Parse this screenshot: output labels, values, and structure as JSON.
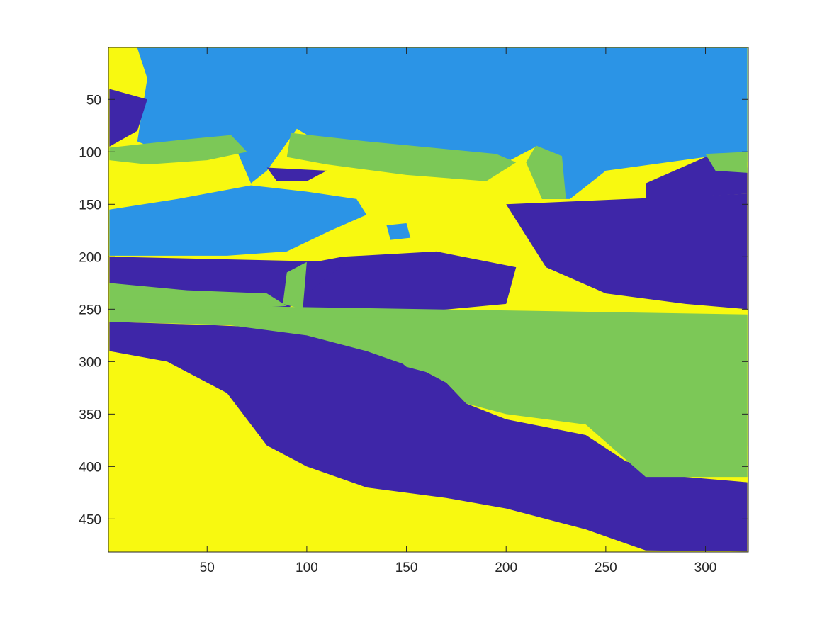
{
  "chart_data": {
    "type": "heatmap",
    "title": "",
    "xlabel": "",
    "ylabel": "",
    "grid": false,
    "legend": "none",
    "colormap": "parula",
    "num_classes": 4,
    "class_colors": [
      "#3E26A8",
      "#2B94E6",
      "#7CC857",
      "#F8F910"
    ],
    "x_ticks": [
      50,
      100,
      150,
      200,
      250,
      300
    ],
    "y_ticks": [
      50,
      100,
      150,
      200,
      250,
      300,
      350,
      400,
      450
    ],
    "xlim": [
      0.5,
      321.5
    ],
    "ylim": [
      0.5,
      481.5
    ],
    "y_direction": "reverse",
    "image_size": {
      "cols": 321,
      "rows": 481
    },
    "regions": [
      {
        "class": 1,
        "polygon": [
          [
            1,
            1
          ],
          [
            321,
            1
          ],
          [
            321,
            110
          ],
          [
            300,
            105
          ],
          [
            250,
            118
          ],
          [
            232,
            145
          ],
          [
            218,
            145
          ],
          [
            215,
            95
          ],
          [
            200,
            110
          ],
          [
            110,
            95
          ],
          [
            95,
            78
          ],
          [
            80,
            118
          ],
          [
            72,
            130
          ],
          [
            62,
            86
          ],
          [
            25,
            98
          ],
          [
            15,
            90
          ],
          [
            20,
            30
          ],
          [
            15,
            1
          ]
        ]
      },
      {
        "class": 1,
        "polygon": [
          [
            1,
            155
          ],
          [
            35,
            145
          ],
          [
            72,
            132
          ],
          [
            100,
            138
          ],
          [
            125,
            145
          ],
          [
            130,
            160
          ],
          [
            112,
            175
          ],
          [
            90,
            195
          ],
          [
            60,
            199
          ],
          [
            1,
            199
          ]
        ]
      },
      {
        "class": 1,
        "polygon": [
          [
            140,
            170
          ],
          [
            150,
            168
          ],
          [
            152,
            182
          ],
          [
            142,
            184
          ]
        ]
      },
      {
        "class": 0,
        "polygon": [
          [
            90,
            210
          ],
          [
            118,
            200
          ],
          [
            165,
            195
          ],
          [
            205,
            210
          ],
          [
            200,
            245
          ],
          [
            160,
            252
          ],
          [
            115,
            255
          ],
          [
            95,
            252
          ]
        ]
      },
      {
        "class": 0,
        "polygon": [
          [
            200,
            150
          ],
          [
            321,
            140
          ],
          [
            321,
            250
          ],
          [
            290,
            245
          ],
          [
            250,
            235
          ],
          [
            220,
            210
          ],
          [
            210,
            180
          ]
        ]
      },
      {
        "class": 0,
        "polygon": [
          [
            300,
            105
          ],
          [
            321,
            115
          ],
          [
            321,
            140
          ],
          [
            270,
            145
          ],
          [
            270,
            130
          ]
        ]
      },
      {
        "class": 0,
        "polygon": [
          [
            1,
            200
          ],
          [
            120,
            205
          ],
          [
            90,
            250
          ],
          [
            1,
            245
          ]
        ]
      },
      {
        "class": 0,
        "polygon": [
          [
            1,
            262
          ],
          [
            50,
            265
          ],
          [
            110,
            270
          ],
          [
            140,
            290
          ],
          [
            170,
            320
          ],
          [
            180,
            340
          ],
          [
            200,
            355
          ],
          [
            240,
            370
          ],
          [
            260,
            395
          ],
          [
            290,
            410
          ],
          [
            321,
            415
          ],
          [
            321,
            481
          ],
          [
            270,
            480
          ],
          [
            240,
            460
          ],
          [
            200,
            440
          ],
          [
            170,
            430
          ],
          [
            130,
            420
          ],
          [
            100,
            400
          ],
          [
            80,
            380
          ],
          [
            60,
            330
          ],
          [
            30,
            300
          ],
          [
            1,
            290
          ]
        ]
      },
      {
        "class": 0,
        "polygon": [
          [
            1,
            40
          ],
          [
            20,
            50
          ],
          [
            15,
            80
          ],
          [
            1,
            95
          ]
        ]
      },
      {
        "class": 0,
        "polygon": [
          [
            80,
            115
          ],
          [
            110,
            118
          ],
          [
            100,
            128
          ],
          [
            85,
            128
          ]
        ]
      },
      {
        "class": 2,
        "polygon": [
          [
            1,
            245
          ],
          [
            321,
            255
          ],
          [
            321,
            410
          ],
          [
            270,
            410
          ],
          [
            240,
            360
          ],
          [
            200,
            350
          ],
          [
            180,
            340
          ],
          [
            170,
            320
          ],
          [
            160,
            310
          ],
          [
            130,
            290
          ],
          [
            100,
            275
          ],
          [
            60,
            265
          ],
          [
            1,
            262
          ]
        ]
      },
      {
        "class": 2,
        "polygon": [
          [
            120,
            258
          ],
          [
            321,
            258
          ],
          [
            321,
            380
          ],
          [
            280,
            375
          ],
          [
            250,
            360
          ],
          [
            220,
            345
          ],
          [
            185,
            330
          ],
          [
            170,
            315
          ],
          [
            150,
            305
          ]
        ]
      },
      {
        "class": 2,
        "polygon": [
          [
            90,
            215
          ],
          [
            100,
            205
          ],
          [
            98,
            250
          ],
          [
            88,
            245
          ]
        ]
      },
      {
        "class": 2,
        "polygon": [
          [
            1,
            225
          ],
          [
            40,
            232
          ],
          [
            80,
            235
          ],
          [
            90,
            247
          ],
          [
            60,
            250
          ],
          [
            1,
            250
          ]
        ]
      },
      {
        "class": 2,
        "polygon": [
          [
            1,
            96
          ],
          [
            20,
            92
          ],
          [
            40,
            88
          ],
          [
            62,
            84
          ],
          [
            70,
            100
          ],
          [
            50,
            108
          ],
          [
            20,
            112
          ],
          [
            1,
            108
          ]
        ]
      },
      {
        "class": 2,
        "polygon": [
          [
            92,
            82
          ],
          [
            130,
            90
          ],
          [
            195,
            102
          ],
          [
            205,
            110
          ],
          [
            190,
            128
          ],
          [
            150,
            122
          ],
          [
            110,
            112
          ],
          [
            90,
            105
          ]
        ]
      },
      {
        "class": 2,
        "polygon": [
          [
            215,
            94
          ],
          [
            228,
            104
          ],
          [
            230,
            145
          ],
          [
            218,
            145
          ],
          [
            210,
            110
          ]
        ]
      },
      {
        "class": 2,
        "polygon": [
          [
            300,
            102
          ],
          [
            321,
            100
          ],
          [
            321,
            120
          ],
          [
            305,
            118
          ]
        ]
      }
    ]
  }
}
